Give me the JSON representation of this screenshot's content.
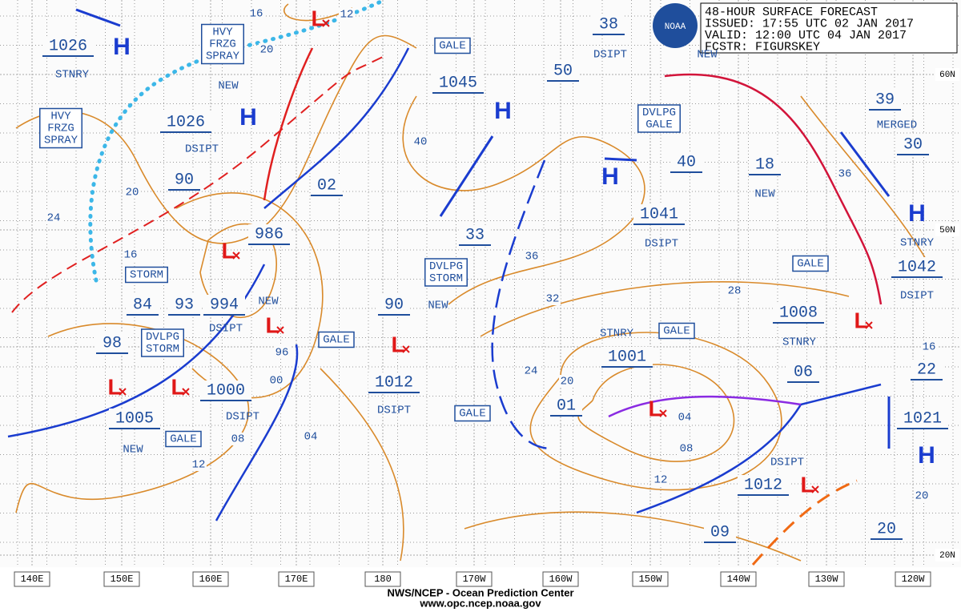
{
  "header": {
    "lines": [
      "48-HOUR SURFACE FORECAST",
      "ISSUED: 17:55 UTC 02 JAN 2017",
      "VALID:  12:00 UTC 04 JAN 2017",
      "FCSTR: FIGURSKEY"
    ],
    "logo": "NOAA"
  },
  "footer": [
    "NWS/NCEP - Ocean Prediction Center",
    "www.opc.ncep.noaa.gov"
  ],
  "longitude_labels": [
    "140E",
    "150E",
    "160E",
    "170E",
    "180",
    "170W",
    "160W",
    "150W",
    "140W",
    "130W",
    "120W"
  ],
  "latitude_labels": [
    "60N",
    "50N",
    "20N"
  ],
  "pressure_labels": [
    "1026",
    "1026",
    "90",
    "1045",
    "50",
    "38",
    "39",
    "30",
    "40",
    "18",
    "02",
    "1041",
    "986",
    "33",
    "1042",
    "84",
    "93",
    "994",
    "90",
    "1008",
    "98",
    "1001",
    "06",
    "22",
    "1012",
    "1000",
    "01",
    "1005",
    "1021",
    "1012",
    "09",
    "20"
  ],
  "annotations": [
    "STNRY",
    "NEW",
    "DSIPT",
    "DSIPT",
    "NEW",
    "MERGED",
    "NEW",
    "DSIPT",
    "STNRY",
    "DSIPT",
    "NEW",
    "NEW",
    "DSIPT",
    "STNRY",
    "STNRY",
    "DSIPT",
    "DSIPT",
    "NEW",
    "DSIPT"
  ],
  "boxed_labels": [
    [
      "HVY",
      "FRZG",
      "SPRAY"
    ],
    [
      "HVY",
      "FRZG",
      "SPRAY"
    ],
    [
      "GALE"
    ],
    [
      "DVLPG",
      "GALE"
    ],
    [
      "GALE"
    ],
    [
      "DVLPG",
      "STORM"
    ],
    [
      "STORM"
    ],
    [
      "DVLPG",
      "STORM"
    ],
    [
      "GALE"
    ],
    [
      "GALE"
    ],
    [
      "GALE"
    ],
    [
      "GALE"
    ]
  ],
  "contour_labels": [
    "16",
    "12",
    "20",
    "40",
    "20",
    "24",
    "16",
    "36",
    "32",
    "28",
    "96",
    "00",
    "24",
    "20",
    "04",
    "08",
    "08",
    "04",
    "12",
    "12",
    "36",
    "16",
    "20"
  ],
  "highs": [
    "H",
    "H",
    "H",
    "H",
    "H",
    "H"
  ],
  "lows": [
    "L",
    "L",
    "L",
    "L",
    "L",
    "L",
    "L",
    "L",
    "L"
  ]
}
